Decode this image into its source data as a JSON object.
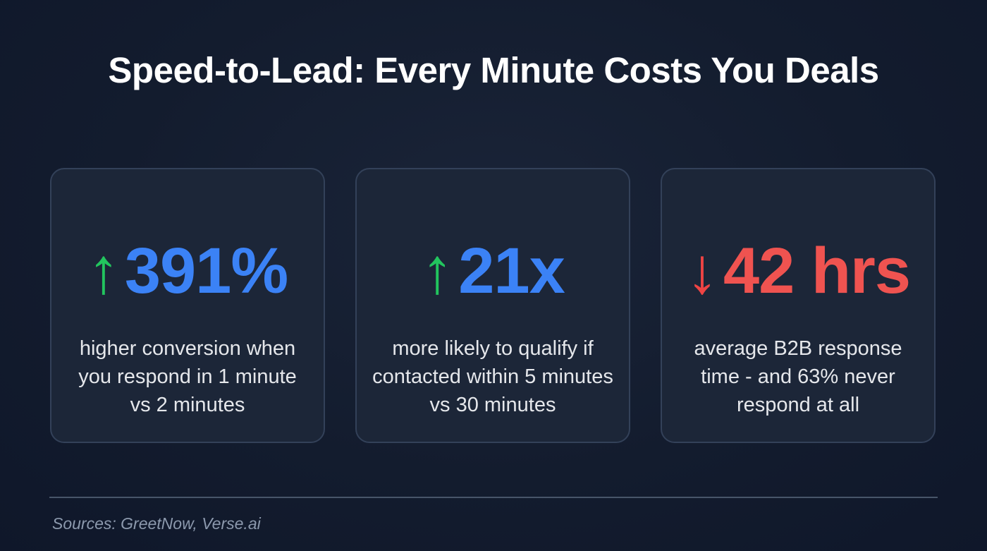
{
  "title": "Speed-to-Lead: Every Minute Costs You Deals",
  "colors": {
    "up": "#22c55e",
    "down": "#ef4444",
    "blue": "#3b82f6",
    "red": "#ef5350"
  },
  "cards": [
    {
      "arrow": "↑",
      "arrow_icon": "arrow-up-icon",
      "value": "391%",
      "description": "higher conversion when you respond in 1 minute vs 2 minutes"
    },
    {
      "arrow": "↑",
      "arrow_icon": "arrow-up-icon",
      "value": "21x",
      "description": "more likely to qualify if contacted within 5 minutes vs 30 minutes"
    },
    {
      "arrow": "↓",
      "arrow_icon": "arrow-down-icon",
      "value": "42 hrs",
      "description": "average B2B response time - and 63% never respond at all"
    }
  ],
  "sources": "Sources: GreetNow, Verse.ai"
}
